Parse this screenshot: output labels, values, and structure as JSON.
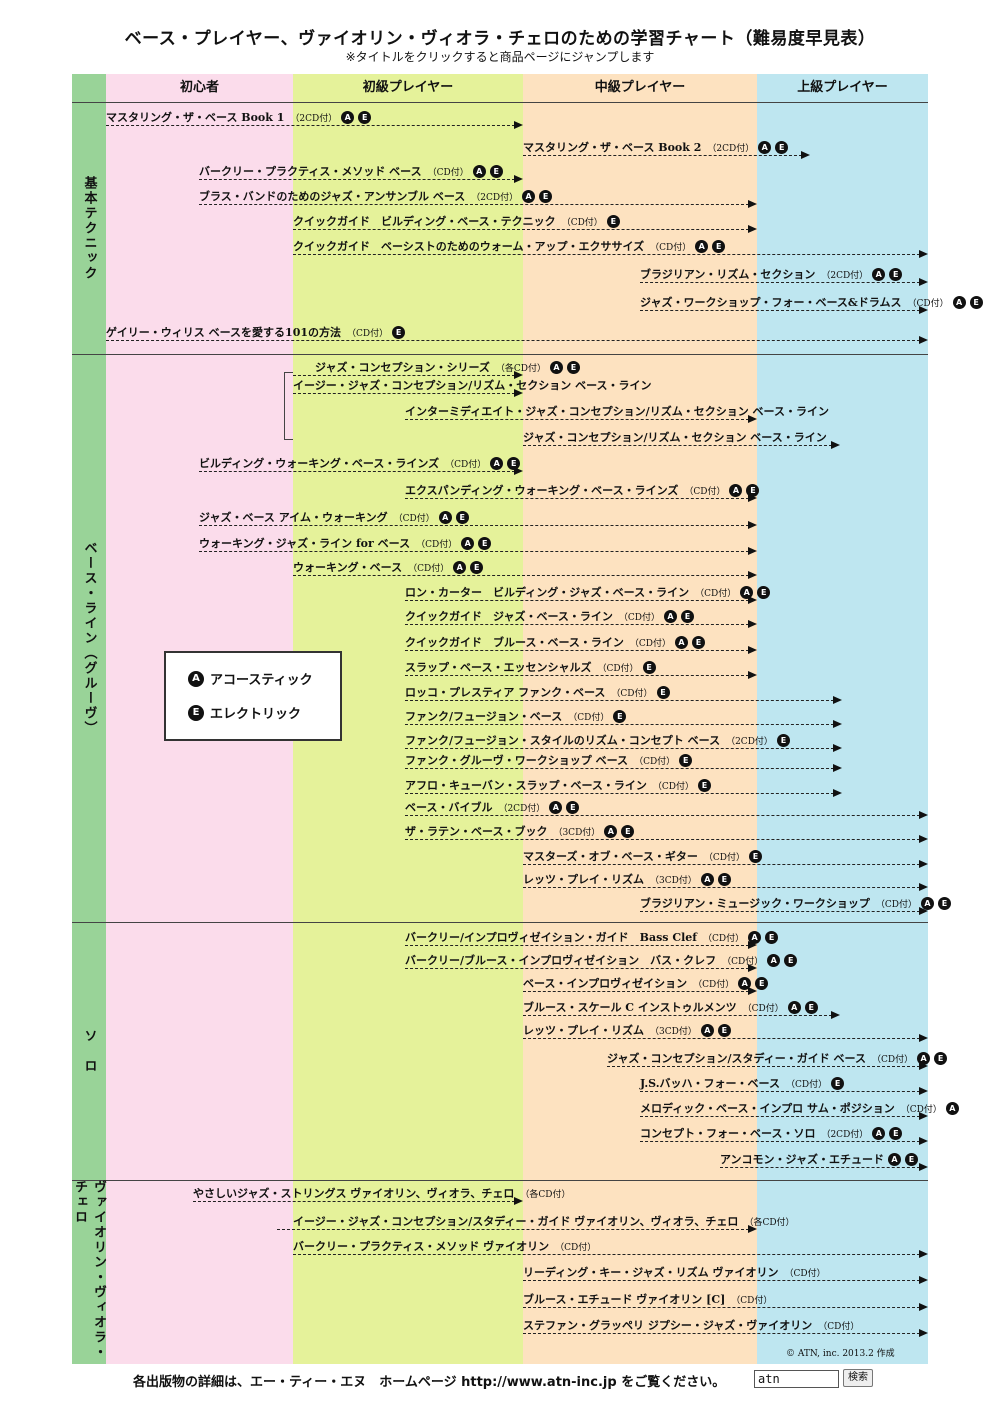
{
  "title": "ベース・プレイヤー、ヴァイオリン・ヴィオラ・チェロのための学習チャート（難易度早見表）",
  "subtitle": "※タイトルをクリックすると商品ページにジャンプします",
  "colors": {
    "green": "#99d398",
    "pink": "#fbdceb",
    "lime": "#e5f29a",
    "orange": "#fde2c0",
    "blue": "#bee6f0"
  },
  "columns": [
    "初心者",
    "初級プレイヤー",
    "中級プレイヤー",
    "上級プレイヤー"
  ],
  "sections": [
    "基本テクニック",
    "ベース・ライン（グルーヴ）",
    "ソ　ロ",
    "ヴァイオリン・ヴィオラ・チェロ"
  ],
  "legend": {
    "a_badge": "A",
    "a_label": "アコースティック",
    "e_badge": "E",
    "e_label": "エレクトリック"
  },
  "rows": [
    {
      "t": "マスタリング・ザ・ベース Book 1",
      "cd": "（2CD付）",
      "b": [
        "A",
        "E"
      ]
    },
    {
      "t": "マスタリング・ザ・ベース Book 2",
      "cd": "（2CD付）",
      "b": [
        "A",
        "E"
      ]
    },
    {
      "t": "バークリー・プラクティス・メソッド ベース",
      "cd": "（CD付）",
      "b": [
        "A",
        "E"
      ]
    },
    {
      "t": "ブラス・バンドのためのジャズ・アンサンブル ベース",
      "cd": "（2CD付）",
      "b": [
        "A",
        "E"
      ]
    },
    {
      "t": "クイックガイド　ビルディング・ベース・テクニック",
      "cd": "（CD付）",
      "b": [
        "E"
      ]
    },
    {
      "t": "クイックガイド　ベーシストのためのウォーム・アップ・エクササイズ",
      "cd": "（CD付）",
      "b": [
        "A",
        "E"
      ]
    },
    {
      "t": "ブラジリアン・リズム・セクション",
      "cd": "（2CD付）",
      "b": [
        "A",
        "E"
      ]
    },
    {
      "t": "ジャズ・ワークショップ・フォー・ベース&ドラムス",
      "cd": "（CD付）",
      "b": [
        "A",
        "E"
      ]
    },
    {
      "t": "ゲイリー・ウィリス ベースを愛する101の方法",
      "cd": "（CD付）",
      "b": [
        "E"
      ]
    },
    {
      "t": "ジャズ・コンセプション・シリーズ",
      "cd": "（各CD付）",
      "b": [
        "A",
        "E"
      ]
    },
    {
      "t": "イージー・ジャズ・コンセプション/リズム・セクション ベース・ライン",
      "cd": "",
      "b": []
    },
    {
      "t": "インターミディエイト・ジャズ・コンセプション/リズム・セクション ベース・ライン",
      "cd": "",
      "b": []
    },
    {
      "t": "ジャズ・コンセプション/リズム・セクション ベース・ライン",
      "cd": "",
      "b": []
    },
    {
      "t": "ビルディング・ウォーキング・ベース・ラインズ",
      "cd": "（CD付）",
      "b": [
        "A",
        "E"
      ]
    },
    {
      "t": "エクスパンディング・ウォーキング・ベース・ラインズ",
      "cd": "（CD付）",
      "b": [
        "A",
        "E"
      ]
    },
    {
      "t": "ジャズ・ベース アイム・ウォーキング",
      "cd": "（CD付）",
      "b": [
        "A",
        "E"
      ]
    },
    {
      "t": "ウォーキング・ジャズ・ライン for ベース",
      "cd": "（CD付）",
      "b": [
        "A",
        "E"
      ]
    },
    {
      "t": "ウォーキング・ベース",
      "cd": "（CD付）",
      "b": [
        "A",
        "E"
      ]
    },
    {
      "t": "ロン・カーター　ビルディング・ジャズ・ベース・ライン",
      "cd": "（CD付）",
      "b": [
        "A",
        "E"
      ]
    },
    {
      "t": "クイックガイド　ジャズ・ベース・ライン",
      "cd": "（CD付）",
      "b": [
        "A",
        "E"
      ]
    },
    {
      "t": "クイックガイド　ブルース・ベース・ライン",
      "cd": "（CD付）",
      "b": [
        "A",
        "E"
      ]
    },
    {
      "t": "スラップ・ベース・エッセンシャルズ",
      "cd": "（CD付）",
      "b": [
        "E"
      ]
    },
    {
      "t": "ロッコ・プレスティア ファンク・ベース",
      "cd": "（CD付）",
      "b": [
        "E"
      ]
    },
    {
      "t": "ファンク/フュージョン・ベース",
      "cd": "（CD付）",
      "b": [
        "E"
      ]
    },
    {
      "t": "ファンク/フュージョン・スタイルのリズム・コンセプト ベース",
      "cd": "（2CD付）",
      "b": [
        "E"
      ]
    },
    {
      "t": "ファンク・グルーヴ・ワークショップ ベース",
      "cd": "（CD付）",
      "b": [
        "E"
      ]
    },
    {
      "t": "アフロ・キューバン・スラップ・ベース・ライン",
      "cd": "（CD付）",
      "b": [
        "E"
      ]
    },
    {
      "t": "ベース・バイブル",
      "cd": "（2CD付）",
      "b": [
        "A",
        "E"
      ]
    },
    {
      "t": "ザ・ラテン・ベース・ブック",
      "cd": "（3CD付）",
      "b": [
        "A",
        "E"
      ]
    },
    {
      "t": "マスターズ・オブ・ベース・ギター",
      "cd": "（CD付）",
      "b": [
        "E"
      ]
    },
    {
      "t": "レッツ・プレイ・リズム",
      "cd": "（3CD付）",
      "b": [
        "A",
        "E"
      ]
    },
    {
      "t": "ブラジリアン・ミュージック・ワークショップ",
      "cd": "（CD付）",
      "b": [
        "A",
        "E"
      ]
    },
    {
      "t": "バークリー/インプロヴィゼイション・ガイド　Bass Clef",
      "cd": "（CD付）",
      "b": [
        "A",
        "E"
      ]
    },
    {
      "t": "バークリー/ブルース・インプロヴィゼイション　バス・クレフ",
      "cd": "（CD付）",
      "b": [
        "A",
        "E"
      ]
    },
    {
      "t": "ベース・インプロヴィゼイション",
      "cd": "（CD付）",
      "b": [
        "A",
        "E"
      ]
    },
    {
      "t": "ブルース・スケール C インストゥルメンツ",
      "cd": "（CD付）",
      "b": [
        "A",
        "E"
      ]
    },
    {
      "t": "レッツ・プレイ・リズム",
      "cd": "（3CD付）",
      "b": [
        "A",
        "E"
      ]
    },
    {
      "t": "ジャズ・コンセプション/スタディー・ガイド ベース",
      "cd": "（CD付）",
      "b": [
        "A",
        "E"
      ]
    },
    {
      "t": "J.S.バッハ・フォー・ベース",
      "cd": "（CD付）",
      "b": [
        "E"
      ]
    },
    {
      "t": "メロディック・ベース・インプロ サム・ポジション",
      "cd": "（CD付）",
      "b": [
        "A"
      ]
    },
    {
      "t": "コンセプト・フォー・ベース・ソロ",
      "cd": "（2CD付）",
      "b": [
        "A",
        "E"
      ]
    },
    {
      "t": "アンコモン・ジャズ・エチュード",
      "cd": "",
      "b": [
        "A",
        "E"
      ]
    },
    {
      "t": "やさしいジャズ・ストリングス ヴァイオリン、ヴィオラ、チェロ",
      "cd": "（各CD付）",
      "b": []
    },
    {
      "t": "イージー・ジャズ・コンセプション/スタディー・ガイド ヴァイオリン、ヴィオラ、チェロ",
      "cd": "（各CD付）",
      "b": []
    },
    {
      "t": "バークリー・プラクティス・メソッド ヴァイオリン",
      "cd": "（CD付）",
      "b": []
    },
    {
      "t": "リーディング・キー・ジャズ・リズム ヴァイオリン",
      "cd": "（CD付）",
      "b": []
    },
    {
      "t": "ブルース・エチュード ヴァイオリン [C]",
      "cd": "（CD付）",
      "b": []
    },
    {
      "t": "ステファン・グラッペリ ジプシー・ジャズ・ヴァイオリン",
      "cd": "（CD付）",
      "b": []
    }
  ],
  "copyright": "© ATN, inc.  2013.2 作成",
  "footer": "各出版物の詳細は、エー・ティー・エヌ　ホームページ http://www.atn-inc.jp をご覧ください。",
  "search_value": "atn",
  "search_button": "検索"
}
